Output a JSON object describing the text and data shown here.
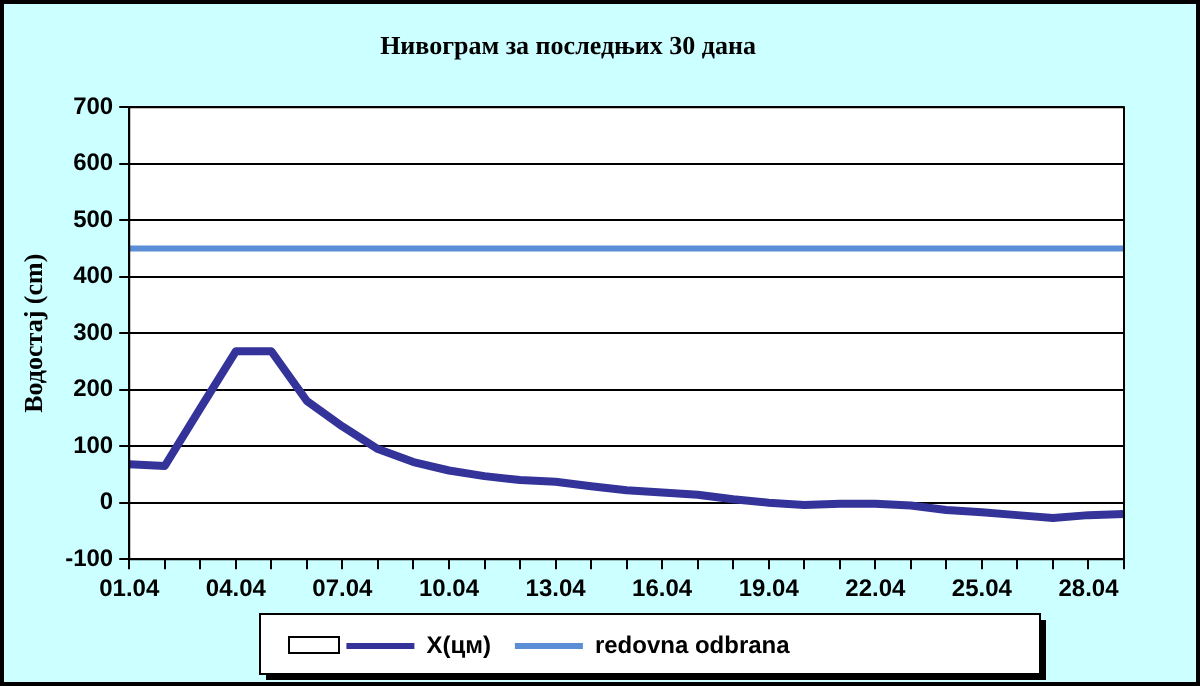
{
  "chart_data": {
    "type": "line",
    "title": "Нивограм за последњих 30 дана",
    "ylabel": "Водостај (cm)",
    "categories": [
      "01.04",
      null,
      null,
      "04.04",
      null,
      null,
      "07.04",
      null,
      null,
      "10.04",
      null,
      null,
      "13.04",
      null,
      null,
      "16.04",
      null,
      null,
      "19.04",
      null,
      null,
      "22.04",
      null,
      null,
      "25.04",
      null,
      null,
      "28.04",
      null
    ],
    "series": [
      {
        "name": "X(цм)",
        "color": "#333399",
        "values": [
          68,
          65,
          167,
          268,
          268,
          180,
          135,
          95,
          72,
          57,
          47,
          40,
          37,
          29,
          22,
          18,
          14,
          6,
          0,
          -4,
          -2,
          -2,
          -5,
          -13,
          -17,
          -22,
          -27,
          -22,
          -20
        ]
      }
    ],
    "ref_lines": [
      {
        "axis": "y",
        "value": 450,
        "label": "redovna odbrana",
        "color": "#5b8ed6"
      }
    ],
    "ylim": [
      -100,
      700
    ],
    "yticks": [
      -100,
      0,
      100,
      200,
      300,
      400,
      500,
      600,
      700
    ],
    "grid": "y",
    "legend": "bottom",
    "marker": "none",
    "line_style": "solid"
  }
}
